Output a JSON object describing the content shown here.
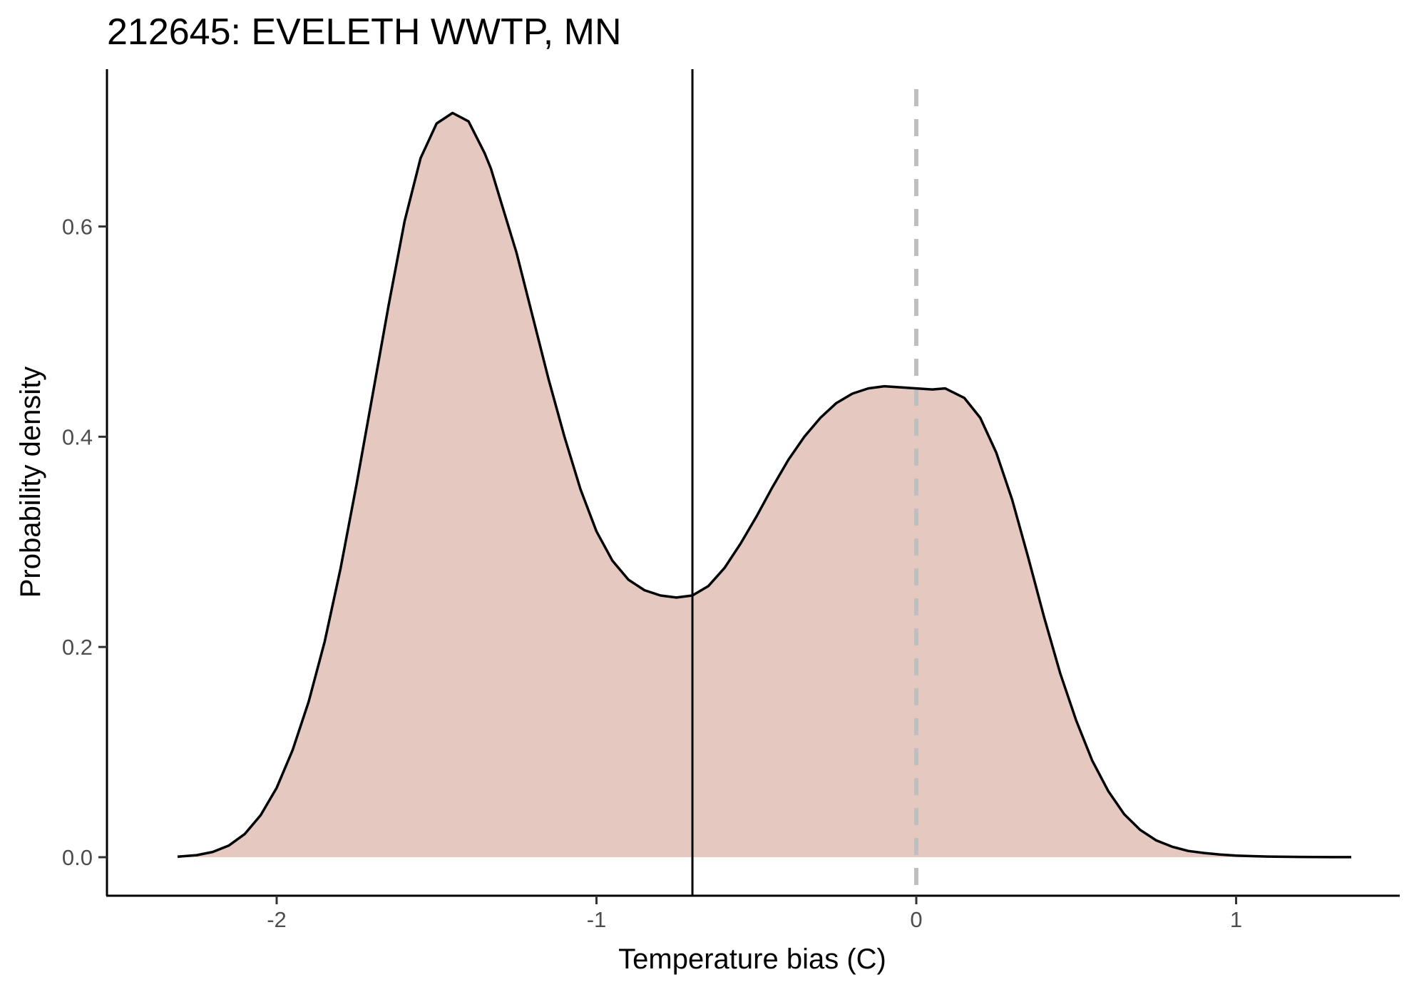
{
  "chart_data": {
    "type": "area",
    "title": "212645: EVELETH WWTP, MN",
    "xlabel": "Temperature bias (C)",
    "ylabel": "Probability density",
    "xlim": [
      -2.5,
      1.5
    ],
    "ylim": [
      -0.036,
      0.75
    ],
    "x_ticks": [
      -2,
      -1,
      0,
      1
    ],
    "x_tick_labels": [
      "-2",
      "-1",
      "0",
      "1"
    ],
    "y_ticks": [
      0.0,
      0.2,
      0.4,
      0.6
    ],
    "y_tick_labels": [
      "0.0",
      "0.2",
      "0.4",
      "0.6"
    ],
    "grid": false,
    "fill_color": "#e5c9c1",
    "line_color": "#000000",
    "reference_lines": [
      {
        "name": "estimate",
        "x": -0.7,
        "style": "solid",
        "color": "#000000"
      },
      {
        "name": "zero",
        "x": 0.0,
        "style": "dashed",
        "color": "#bfbfbf"
      }
    ],
    "series": [
      {
        "x": [
          -2.31,
          -2.25,
          -2.2,
          -2.15,
          -2.1,
          -2.05,
          -2.0,
          -1.95,
          -1.9,
          -1.85,
          -1.8,
          -1.75,
          -1.7,
          -1.65,
          -1.6,
          -1.55,
          -1.5,
          -1.45,
          -1.4,
          -1.35,
          -1.33,
          -1.3,
          -1.25,
          -1.2,
          -1.15,
          -1.1,
          -1.05,
          -1.0,
          -0.95,
          -0.9,
          -0.85,
          -0.8,
          -0.75,
          -0.7,
          -0.65,
          -0.6,
          -0.55,
          -0.5,
          -0.45,
          -0.4,
          -0.35,
          -0.3,
          -0.25,
          -0.2,
          -0.15,
          -0.1,
          -0.05,
          0.0,
          0.05,
          0.09,
          0.15,
          0.2,
          0.25,
          0.3,
          0.35,
          0.4,
          0.45,
          0.5,
          0.55,
          0.6,
          0.65,
          0.7,
          0.75,
          0.8,
          0.85,
          0.9,
          0.95,
          1.0,
          1.05,
          1.1,
          1.15,
          1.2,
          1.25,
          1.3,
          1.36
        ],
        "y": [
          0.0005,
          0.002,
          0.005,
          0.011,
          0.022,
          0.04,
          0.066,
          0.102,
          0.148,
          0.205,
          0.275,
          0.355,
          0.44,
          0.525,
          0.605,
          0.665,
          0.698,
          0.708,
          0.7,
          0.67,
          0.655,
          0.625,
          0.575,
          0.515,
          0.455,
          0.4,
          0.35,
          0.31,
          0.282,
          0.264,
          0.254,
          0.249,
          0.247,
          0.249,
          0.258,
          0.275,
          0.298,
          0.324,
          0.352,
          0.378,
          0.4,
          0.418,
          0.432,
          0.441,
          0.446,
          0.448,
          0.447,
          0.446,
          0.445,
          0.446,
          0.437,
          0.418,
          0.385,
          0.34,
          0.285,
          0.228,
          0.175,
          0.13,
          0.092,
          0.063,
          0.041,
          0.026,
          0.016,
          0.01,
          0.006,
          0.004,
          0.0025,
          0.0015,
          0.001,
          0.0006,
          0.0004,
          0.0003,
          0.0002,
          0.0001,
          0.0001
        ]
      }
    ]
  }
}
